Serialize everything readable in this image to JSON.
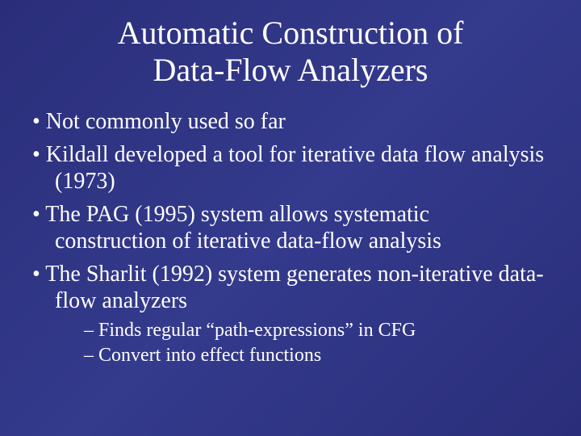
{
  "slide": {
    "background_color": "#2e3284",
    "text_color": "#ffffff",
    "font_family": "Times New Roman",
    "title_fontsize": 40,
    "bullet_fontsize": 28,
    "subbullet_fontsize": 24,
    "title_line1": "Automatic Construction of",
    "title_line2": "Data-Flow Analyzers",
    "bullets": [
      "Not commonly used so far",
      "Kildall developed a tool for iterative data flow analysis (1973)",
      "The PAG (1995) system allows systematic construction of iterative data-flow analysis",
      "The Sharlit (1992) system generates non-iterative data-flow analyzers"
    ],
    "sub_bullets": [
      "Finds regular “path-expressions” in CFG",
      "Convert into effect functions"
    ]
  }
}
